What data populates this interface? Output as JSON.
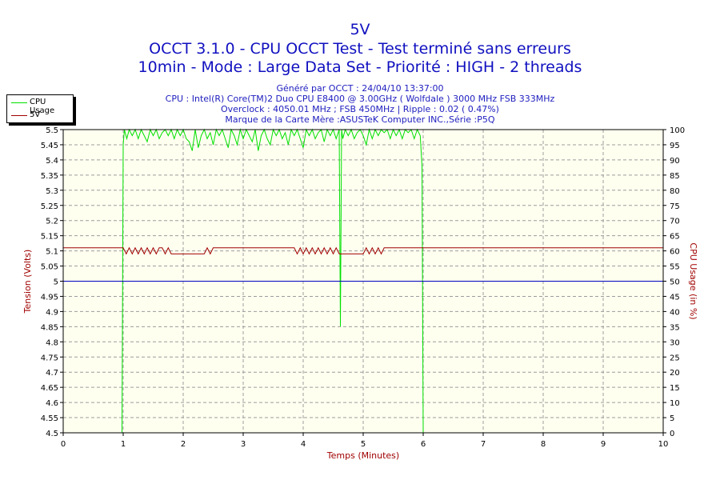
{
  "header": {
    "title": "5V",
    "subtitle1": "OCCT 3.1.0 - CPU OCCT Test - Test terminé sans erreurs",
    "subtitle2": "10min - Mode : Large Data Set - Priorité : HIGH - 2 threads",
    "info": [
      "Généré par OCCT : 24/04/10 13:37:00",
      "CPU : Intel(R) Core(TM)2 Duo CPU E8400 @ 3.00GHz ( Wolfdale ) 3000 MHz FSB 333MHz",
      "Overclock : 4050.01 MHz ; FSB 450MHz | Ripple : 0.02 ( 0.47%)",
      "Marque de la Carte Mère :ASUSTeK Computer INC.,Série :P5Q"
    ]
  },
  "colors": {
    "plot_bg": "#fffff0",
    "grid": "#9c9c9c",
    "cpu_usage": "#00e000",
    "voltage": "#a00000",
    "reference": "#0000c0",
    "axis_label": "#a00000",
    "title": "#1010c0"
  },
  "chart_data": {
    "type": "line",
    "xlabel": "Temps (Minutes)",
    "ylabel_left": "Tension (Volts)",
    "ylabel_right": "CPU Usage (in %)",
    "xlim": [
      0,
      10
    ],
    "ylim_left": [
      4.5,
      5.5
    ],
    "ylim_right": [
      0,
      100
    ],
    "x_ticks": [
      "0",
      "1",
      "2",
      "3",
      "4",
      "5",
      "6",
      "7",
      "8",
      "9",
      "10"
    ],
    "y_ticks_left": [
      "5.5",
      "5.45",
      "5.4",
      "5.35",
      "5.3",
      "5.25",
      "5.2",
      "5.15",
      "5.1",
      "5.05",
      "5",
      "4.95",
      "4.9",
      "4.85",
      "4.8",
      "4.75",
      "4.7",
      "4.65",
      "4.6",
      "4.55",
      "4.5"
    ],
    "y_ticks_right": [
      "100",
      "95",
      "90",
      "85",
      "80",
      "75",
      "70",
      "65",
      "60",
      "55",
      "50",
      "45",
      "40",
      "35",
      "30",
      "25",
      "20",
      "15",
      "10",
      "5",
      "0"
    ],
    "grid": true,
    "legend": {
      "position": "top-left",
      "entries": [
        "CPU Usage",
        "5V"
      ]
    },
    "series": [
      {
        "name": "CPU Usage",
        "axis": "right",
        "x": [
          0,
          0.98,
          1.0,
          1.02,
          1.06,
          1.1,
          1.15,
          1.2,
          1.25,
          1.3,
          1.35,
          1.4,
          1.45,
          1.5,
          1.55,
          1.6,
          1.65,
          1.7,
          1.75,
          1.8,
          1.85,
          1.9,
          1.95,
          2.0,
          2.05,
          2.1,
          2.15,
          2.2,
          2.25,
          2.3,
          2.35,
          2.4,
          2.45,
          2.5,
          2.55,
          2.6,
          2.65,
          2.7,
          2.75,
          2.8,
          2.85,
          2.9,
          2.95,
          3.0,
          3.05,
          3.1,
          3.15,
          3.2,
          3.25,
          3.3,
          3.35,
          3.4,
          3.45,
          3.5,
          3.55,
          3.6,
          3.65,
          3.7,
          3.75,
          3.8,
          3.85,
          3.9,
          3.95,
          4.0,
          4.05,
          4.1,
          4.15,
          4.2,
          4.25,
          4.3,
          4.35,
          4.4,
          4.45,
          4.5,
          4.55,
          4.6,
          4.62,
          4.64,
          4.66,
          4.7,
          4.75,
          4.8,
          4.85,
          4.9,
          4.95,
          5.0,
          5.05,
          5.1,
          5.15,
          5.2,
          5.25,
          5.3,
          5.35,
          5.4,
          5.45,
          5.5,
          5.55,
          5.6,
          5.65,
          5.7,
          5.75,
          5.8,
          5.85,
          5.9,
          5.95,
          5.98,
          6.0,
          6.02,
          6.1,
          7,
          8,
          9,
          10
        ],
        "values": [
          0,
          0,
          95,
          100,
          97,
          100,
          98,
          100,
          97,
          100,
          98,
          96,
          100,
          98,
          100,
          97,
          99,
          100,
          98,
          100,
          97,
          100,
          98,
          100,
          97,
          96,
          93,
          100,
          94,
          98,
          100,
          97,
          99,
          95,
          100,
          98,
          100,
          97,
          94,
          100,
          98,
          95,
          100,
          97,
          100,
          98,
          96,
          100,
          93,
          98,
          100,
          97,
          95,
          100,
          98,
          100,
          97,
          99,
          95,
          100,
          98,
          100,
          97,
          94,
          100,
          98,
          100,
          97,
          99,
          100,
          96,
          100,
          98,
          100,
          97,
          100,
          35,
          100,
          97,
          100,
          98,
          100,
          97,
          99,
          100,
          98,
          95,
          100,
          97,
          100,
          98,
          100,
          99,
          100,
          97,
          100,
          98,
          100,
          97,
          100,
          99,
          100,
          97,
          100,
          98,
          88,
          0,
          0,
          0,
          0,
          0,
          0,
          0
        ]
      },
      {
        "name": "5V",
        "axis": "left",
        "x": [
          0,
          1.0,
          1.05,
          1.1,
          1.15,
          1.2,
          1.25,
          1.3,
          1.35,
          1.4,
          1.45,
          1.5,
          1.55,
          1.6,
          1.65,
          1.7,
          1.75,
          1.8,
          2.35,
          2.4,
          2.45,
          2.5,
          3.85,
          3.9,
          3.95,
          4.0,
          4.05,
          4.1,
          4.15,
          4.2,
          4.25,
          4.3,
          4.35,
          4.4,
          4.45,
          4.5,
          4.55,
          4.6,
          4.65,
          4.7,
          4.75,
          4.8,
          5.0,
          5.05,
          5.1,
          5.15,
          5.2,
          5.25,
          5.3,
          5.35,
          5.4,
          6.0,
          7,
          8,
          9,
          10
        ],
        "values": [
          5.11,
          5.11,
          5.09,
          5.11,
          5.09,
          5.11,
          5.09,
          5.11,
          5.09,
          5.11,
          5.09,
          5.11,
          5.09,
          5.11,
          5.11,
          5.09,
          5.11,
          5.09,
          5.09,
          5.11,
          5.09,
          5.11,
          5.11,
          5.09,
          5.11,
          5.09,
          5.11,
          5.09,
          5.11,
          5.09,
          5.11,
          5.09,
          5.11,
          5.09,
          5.11,
          5.09,
          5.11,
          5.09,
          5.09,
          5.09,
          5.09,
          5.09,
          5.09,
          5.11,
          5.09,
          5.11,
          5.09,
          5.11,
          5.09,
          5.11,
          5.11,
          5.11,
          5.11,
          5.11,
          5.11,
          5.11
        ]
      },
      {
        "name": "",
        "axis": "left",
        "x": [
          0,
          10
        ],
        "values": [
          5.0,
          5.0
        ]
      }
    ]
  }
}
